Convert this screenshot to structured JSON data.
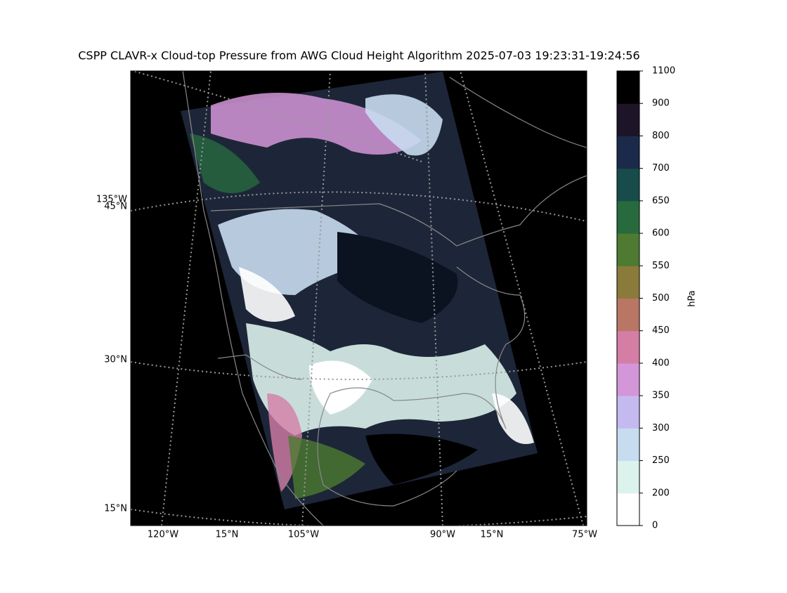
{
  "title": "CSPP CLAVR-x Cloud-top Pressure from AWG Cloud Height Algorithm 2025-07-03 19:23:31-19:24:56",
  "map": {
    "left_labels": [
      "135°W",
      "45°N",
      "30°N",
      "15°N"
    ],
    "bottom_labels": [
      "120°W",
      "15°N",
      "105°W",
      "90°W",
      "15°N",
      "75°W"
    ]
  },
  "colorbar": {
    "label": "hPa",
    "boundaries": [
      0,
      200,
      250,
      300,
      350,
      400,
      450,
      500,
      550,
      600,
      650,
      700,
      800,
      900,
      1100
    ],
    "colors": [
      "#ffffff",
      "#dcf2ec",
      "#c8dcf0",
      "#c4baf0",
      "#d396d8",
      "#d47ea6",
      "#b97664",
      "#8a7b3a",
      "#4e7a31",
      "#276a3e",
      "#174c4b",
      "#1b2a4a",
      "#1e1428",
      "#000000"
    ]
  }
}
